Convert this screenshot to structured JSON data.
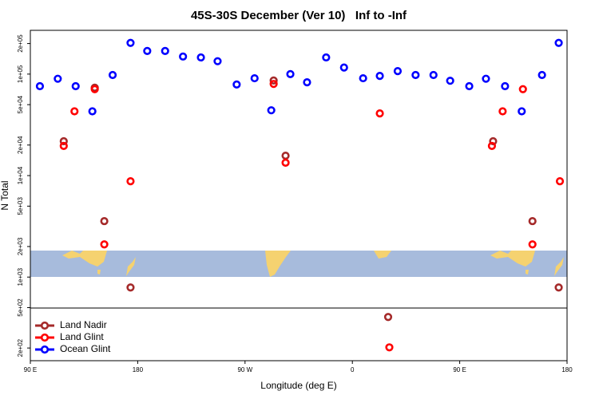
{
  "chart_data": {
    "type": "scatter",
    "title": "45S-30S December (Ver 10)   Inf to -Inf",
    "x_label": "Longitude (deg E)",
    "y_label": "N Total",
    "xlim": [
      90,
      540
    ],
    "xticks": [
      {
        "value": 90,
        "label": "90 E"
      },
      {
        "value": 180,
        "label": "180"
      },
      {
        "value": 270,
        "label": "90 W"
      },
      {
        "value": 360,
        "label": "0"
      },
      {
        "value": 450,
        "label": "90 E"
      },
      {
        "value": 540,
        "label": "180"
      }
    ],
    "ylim": [
      150,
      270000
    ],
    "y_scale": "log",
    "yticks": [
      {
        "value": 200,
        "label": "2e+02"
      },
      {
        "value": 500,
        "label": "5e+02"
      },
      {
        "value": 1000,
        "label": "1e+03"
      },
      {
        "value": 2000,
        "label": "2e+03"
      },
      {
        "value": 5000,
        "label": "5e+03"
      },
      {
        "value": 10000,
        "label": "1e+04"
      },
      {
        "value": 20000,
        "label": "2e+04"
      },
      {
        "value": 50000,
        "label": "5e+04"
      },
      {
        "value": 100000,
        "label": "1e+05"
      },
      {
        "value": 200000,
        "label": "2e+05"
      }
    ],
    "legend": "bottomleft",
    "series": [
      {
        "name": "Land Nadir",
        "color": "#a52a2a",
        "x": [
          118,
          144,
          152,
          174,
          294,
          304,
          390,
          478,
          511,
          533
        ],
        "values": [
          21800,
          73500,
          3560,
          790,
          86500,
          15700,
          404,
          21800,
          3560,
          790
        ]
      },
      {
        "name": "Land Glint",
        "color": "#ff0000",
        "x": [
          118,
          127,
          144,
          152,
          174,
          294,
          304,
          383,
          391,
          477,
          486,
          503,
          511,
          534
        ],
        "values": [
          19600,
          43000,
          71000,
          2100,
          8800,
          80000,
          13400,
          41000,
          203,
          19600,
          43000,
          71000,
          2100,
          8800
        ]
      },
      {
        "name": "Ocean Glint",
        "color": "#0000ff",
        "x": [
          98,
          113,
          128,
          142,
          159,
          174,
          188,
          203,
          218,
          233,
          247,
          263,
          278,
          292,
          308,
          322,
          338,
          353,
          369,
          383,
          398,
          413,
          428,
          442,
          458,
          472,
          488,
          502,
          519,
          533
        ],
        "values": [
          76000,
          90000,
          76000,
          43000,
          98000,
          203000,
          169000,
          169000,
          149000,
          146000,
          134000,
          79000,
          91000,
          44000,
          100000,
          83000,
          146000,
          116000,
          91000,
          96000,
          107000,
          98000,
          98000,
          86000,
          76000,
          90000,
          76000,
          43000,
          98000,
          203000
        ]
      }
    ]
  }
}
